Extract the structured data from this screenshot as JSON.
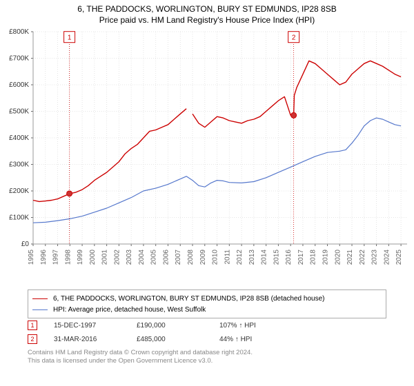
{
  "title_line1": "6, THE PADDOCKS, WORLINGTON, BURY ST EDMUNDS, IP28 8SB",
  "title_line2": "Price paid vs. HM Land Registry's House Price Index (HPI)",
  "chart": {
    "type": "line",
    "background_color": "#ffffff",
    "plot_border_color": "#999999",
    "grid_color": "#dddddd",
    "grid_style": "dotted",
    "xlim": [
      1995,
      2025.5
    ],
    "ylim": [
      0,
      800000
    ],
    "ytick_step": 100000,
    "ytick_labels": [
      "£0",
      "£100K",
      "£200K",
      "£300K",
      "£400K",
      "£500K",
      "£600K",
      "£700K",
      "£800K"
    ],
    "xtick_years": [
      1995,
      1996,
      1997,
      1998,
      1999,
      2000,
      2001,
      2002,
      2003,
      2004,
      2005,
      2006,
      2007,
      2008,
      2009,
      2010,
      2011,
      2012,
      2013,
      2014,
      2015,
      2016,
      2017,
      2018,
      2019,
      2020,
      2021,
      2022,
      2023,
      2024,
      2025
    ],
    "axis_font_size": 10,
    "series": [
      {
        "name": "property_price",
        "color": "#cc0000",
        "stroke_width": 1.4,
        "points": [
          [
            1995,
            165000
          ],
          [
            1995.5,
            160000
          ],
          [
            1996,
            162000
          ],
          [
            1996.5,
            165000
          ],
          [
            1997,
            170000
          ],
          [
            1997.5,
            180000
          ],
          [
            1998,
            190000
          ],
          [
            1998.5,
            195000
          ],
          [
            1999,
            205000
          ],
          [
            1999.5,
            220000
          ],
          [
            2000,
            240000
          ],
          [
            2000.5,
            255000
          ],
          [
            2001,
            270000
          ],
          [
            2001.5,
            290000
          ],
          [
            2002,
            310000
          ],
          [
            2002.5,
            340000
          ],
          [
            2003,
            360000
          ],
          [
            2003.5,
            375000
          ],
          [
            2004,
            400000
          ],
          [
            2004.5,
            425000
          ],
          [
            2005,
            430000
          ],
          [
            2005.5,
            440000
          ],
          [
            2006,
            450000
          ],
          [
            2006.5,
            470000
          ],
          [
            2007,
            490000
          ],
          [
            2007.5,
            510000
          ],
          [
            2008,
            490000
          ],
          [
            2008.5,
            455000
          ],
          [
            2009,
            440000
          ],
          [
            2009.5,
            460000
          ],
          [
            2010,
            480000
          ],
          [
            2010.5,
            475000
          ],
          [
            2011,
            465000
          ],
          [
            2011.5,
            460000
          ],
          [
            2012,
            455000
          ],
          [
            2012.5,
            465000
          ],
          [
            2013,
            470000
          ],
          [
            2013.5,
            480000
          ],
          [
            2014,
            500000
          ],
          [
            2014.5,
            520000
          ],
          [
            2015,
            540000
          ],
          [
            2015.5,
            555000
          ],
          [
            2016.0,
            485000
          ],
          [
            2016.2,
            480000
          ],
          [
            2016.25,
            485000
          ],
          [
            2016.3,
            560000
          ],
          [
            2016.5,
            590000
          ],
          [
            2017,
            640000
          ],
          [
            2017.5,
            690000
          ],
          [
            2018,
            680000
          ],
          [
            2018.5,
            660000
          ],
          [
            2019,
            640000
          ],
          [
            2019.5,
            620000
          ],
          [
            2020,
            600000
          ],
          [
            2020.5,
            610000
          ],
          [
            2021,
            640000
          ],
          [
            2021.5,
            660000
          ],
          [
            2022,
            680000
          ],
          [
            2022.5,
            690000
          ],
          [
            2023,
            680000
          ],
          [
            2023.5,
            670000
          ],
          [
            2024,
            655000
          ],
          [
            2024.5,
            640000
          ],
          [
            2025,
            630000
          ]
        ]
      },
      {
        "name": "hpi_west_suffolk",
        "color": "#5577cc",
        "stroke_width": 1.2,
        "points": [
          [
            1995,
            80000
          ],
          [
            1996,
            82000
          ],
          [
            1997,
            88000
          ],
          [
            1998,
            95000
          ],
          [
            1999,
            105000
          ],
          [
            2000,
            120000
          ],
          [
            2001,
            135000
          ],
          [
            2002,
            155000
          ],
          [
            2003,
            175000
          ],
          [
            2004,
            200000
          ],
          [
            2005,
            210000
          ],
          [
            2006,
            225000
          ],
          [
            2007,
            245000
          ],
          [
            2007.5,
            255000
          ],
          [
            2008,
            240000
          ],
          [
            2008.5,
            220000
          ],
          [
            2009,
            215000
          ],
          [
            2009.5,
            230000
          ],
          [
            2010,
            240000
          ],
          [
            2010.5,
            238000
          ],
          [
            2011,
            232000
          ],
          [
            2012,
            230000
          ],
          [
            2013,
            235000
          ],
          [
            2014,
            250000
          ],
          [
            2015,
            270000
          ],
          [
            2016,
            290000
          ],
          [
            2017,
            310000
          ],
          [
            2018,
            330000
          ],
          [
            2019,
            345000
          ],
          [
            2020,
            350000
          ],
          [
            2020.5,
            355000
          ],
          [
            2021,
            380000
          ],
          [
            2021.5,
            410000
          ],
          [
            2022,
            445000
          ],
          [
            2022.5,
            465000
          ],
          [
            2023,
            475000
          ],
          [
            2023.5,
            470000
          ],
          [
            2024,
            460000
          ],
          [
            2024.5,
            450000
          ],
          [
            2025,
            445000
          ]
        ]
      }
    ],
    "series_break": {
      "series_index": 0,
      "at_index": 25
    },
    "vlines": [
      {
        "x": 1997.96,
        "color": "#cc0000",
        "style": "dotted"
      },
      {
        "x": 2016.25,
        "color": "#cc0000",
        "style": "dotted"
      }
    ],
    "data_markers": [
      {
        "label": "1",
        "x": 1997.96,
        "y": 190000,
        "badge_y": 780000,
        "color": "#cc0000",
        "fill": "#cc3333"
      },
      {
        "label": "2",
        "x": 2016.25,
        "y": 485000,
        "badge_y": 780000,
        "color": "#cc0000",
        "fill": "#cc3333"
      }
    ]
  },
  "legend": {
    "border_color": "#aaaaaa",
    "items": [
      {
        "color": "#cc0000",
        "text": "6, THE PADDOCKS, WORLINGTON, BURY ST EDMUNDS, IP28 8SB (detached house)"
      },
      {
        "color": "#5577cc",
        "text": "HPI: Average price, detached house, West Suffolk"
      }
    ]
  },
  "transactions": [
    {
      "badge": "1",
      "date": "15-DEC-1997",
      "price": "£190,000",
      "delta": "107% ↑ HPI",
      "badge_color": "#cc0000"
    },
    {
      "badge": "2",
      "date": "31-MAR-2016",
      "price": "£485,000",
      "delta": "44% ↑ HPI",
      "badge_color": "#cc0000"
    }
  ],
  "attribution": {
    "line1": "Contains HM Land Registry data © Crown copyright and database right 2024.",
    "line2": "This data is licensed under the Open Government Licence v3.0."
  }
}
